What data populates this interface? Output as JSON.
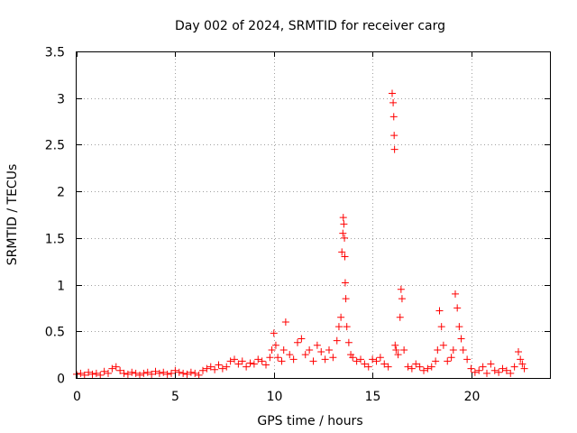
{
  "chart_data": {
    "type": "scatter",
    "title": "Day 002 of 2024, SRMTID for receiver carg",
    "xlabel": "GPS time / hours",
    "ylabel": "SRMTID / TECUs",
    "xlim": [
      0,
      24
    ],
    "ylim": [
      0,
      3.5
    ],
    "xticks": [
      0,
      5,
      10,
      15,
      20
    ],
    "xtick_labels": [
      "0",
      "5",
      "10",
      "15",
      "20"
    ],
    "yticks": [
      0,
      0.5,
      1,
      1.5,
      2,
      2.5,
      3,
      3.5
    ],
    "ytick_labels": [
      "0",
      "0.5",
      "1",
      "1.5",
      "2",
      "2.5",
      "3",
      "3.5"
    ],
    "grid": true,
    "marker": "+",
    "color": "#ff0000",
    "series": [
      {
        "name": "SRMTID",
        "x": [
          0.0,
          0.2,
          0.4,
          0.6,
          0.8,
          1.0,
          1.2,
          1.4,
          1.6,
          1.8,
          2.0,
          2.2,
          2.4,
          2.6,
          2.8,
          3.0,
          3.2,
          3.4,
          3.6,
          3.8,
          4.0,
          4.2,
          4.4,
          4.6,
          4.8,
          5.0,
          5.2,
          5.4,
          5.6,
          5.8,
          6.0,
          6.2,
          6.4,
          6.6,
          6.8,
          7.0,
          7.2,
          7.4,
          7.6,
          7.8,
          8.0,
          8.2,
          8.4,
          8.6,
          8.8,
          9.0,
          9.2,
          9.4,
          9.6,
          9.8,
          9.9,
          10.0,
          10.1,
          10.2,
          10.4,
          10.5,
          10.6,
          10.8,
          11.0,
          11.2,
          11.4,
          11.6,
          11.8,
          12.0,
          12.2,
          12.4,
          12.6,
          12.8,
          13.0,
          13.2,
          13.3,
          13.4,
          13.45,
          13.5,
          13.52,
          13.55,
          13.58,
          13.6,
          13.62,
          13.65,
          13.7,
          13.8,
          13.9,
          14.0,
          14.2,
          14.4,
          14.6,
          14.8,
          15.0,
          15.2,
          15.4,
          15.6,
          15.8,
          16.0,
          16.05,
          16.08,
          16.1,
          16.12,
          16.15,
          16.2,
          16.3,
          16.4,
          16.45,
          16.5,
          16.6,
          16.8,
          17.0,
          17.2,
          17.4,
          17.6,
          17.8,
          18.0,
          18.2,
          18.3,
          18.4,
          18.5,
          18.6,
          18.8,
          19.0,
          19.1,
          19.2,
          19.3,
          19.4,
          19.5,
          19.6,
          19.8,
          20.0,
          20.2,
          20.4,
          20.6,
          20.8,
          21.0,
          21.2,
          21.4,
          21.6,
          21.8,
          22.0,
          22.2,
          22.4,
          22.5,
          22.6,
          22.7
        ],
        "y": [
          0.04,
          0.05,
          0.03,
          0.06,
          0.04,
          0.05,
          0.03,
          0.07,
          0.05,
          0.1,
          0.12,
          0.08,
          0.05,
          0.04,
          0.06,
          0.05,
          0.03,
          0.05,
          0.06,
          0.04,
          0.07,
          0.05,
          0.06,
          0.04,
          0.05,
          0.08,
          0.06,
          0.05,
          0.04,
          0.06,
          0.05,
          0.03,
          0.08,
          0.1,
          0.12,
          0.09,
          0.14,
          0.1,
          0.12,
          0.18,
          0.2,
          0.15,
          0.18,
          0.12,
          0.16,
          0.15,
          0.2,
          0.18,
          0.14,
          0.22,
          0.3,
          0.48,
          0.35,
          0.22,
          0.18,
          0.3,
          0.6,
          0.25,
          0.2,
          0.38,
          0.42,
          0.25,
          0.3,
          0.18,
          0.35,
          0.28,
          0.2,
          0.3,
          0.22,
          0.4,
          0.55,
          0.65,
          1.35,
          1.55,
          1.72,
          1.65,
          1.5,
          1.3,
          1.02,
          0.85,
          0.55,
          0.38,
          0.25,
          0.22,
          0.18,
          0.2,
          0.15,
          0.12,
          0.2,
          0.18,
          0.22,
          0.15,
          0.12,
          3.05,
          2.95,
          2.8,
          2.6,
          2.45,
          0.35,
          0.3,
          0.25,
          0.65,
          0.95,
          0.85,
          0.3,
          0.12,
          0.1,
          0.15,
          0.12,
          0.08,
          0.1,
          0.12,
          0.18,
          0.3,
          0.72,
          0.55,
          0.35,
          0.18,
          0.22,
          0.3,
          0.9,
          0.75,
          0.55,
          0.42,
          0.3,
          0.2,
          0.1,
          0.06,
          0.08,
          0.12,
          0.05,
          0.15,
          0.08,
          0.06,
          0.1,
          0.08,
          0.05,
          0.12,
          0.28,
          0.2,
          0.15,
          0.1
        ]
      }
    ]
  }
}
